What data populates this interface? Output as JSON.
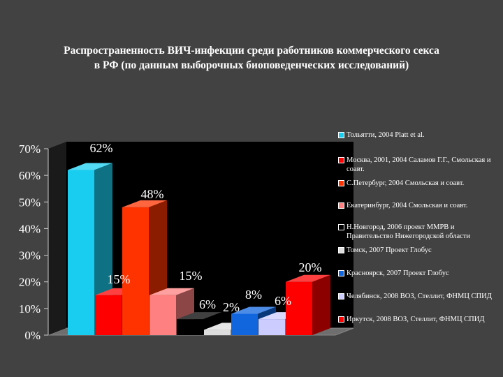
{
  "chart_data": {
    "type": "bar",
    "title_lines": [
      "Распространенность ВИЧ-инфекции среди работников коммерческого секса",
      "в РФ (по данным выборочных биоповеденческих исследований)"
    ],
    "ylim": [
      0,
      70
    ],
    "yticks": [
      "0%",
      "10%",
      "20%",
      "30%",
      "40%",
      "50%",
      "60%",
      "70%"
    ],
    "series": [
      {
        "name": "Тольятти, 2004 Platt et al.",
        "value": 62,
        "label": "62%",
        "color": "#19cdf0"
      },
      {
        "name": "Москва, 2001, 2004 Саламов Г.Г., Смольская и соавт.",
        "value": 15,
        "label": "15%",
        "color": "#ff0000"
      },
      {
        "name": "С.Петербург, 2004 Смольская и соавт.",
        "value": 48,
        "label": "48%",
        "color": "#ff3300"
      },
      {
        "name": "Екатеринбург, 2004 Смольская и соавт.",
        "value": 15,
        "label": "15%",
        "color": "#ff8080"
      },
      {
        "name": "Н.Новгород, 2006 проект ММРВ и Правительство Нижегородской области",
        "value": 6,
        "label": "6%",
        "color": "#000000"
      },
      {
        "name": "Томск, 2007 Проект Глобус",
        "value": 2,
        "label": "2%",
        "color": "#dddddd"
      },
      {
        "name": "Красноярск, 2007 Проект Глобус",
        "value": 8,
        "label": "8%",
        "color": "#1166dd"
      },
      {
        "name": "Челябинск, 2008 ВОЗ, Стеллит, ФНМЦ СПИД",
        "value": 6,
        "label": "6%",
        "color": "#ccccff"
      },
      {
        "name": "Иркутск, 2008 ВОЗ, Стеллит, ФНМЦ СПИД",
        "value": 20,
        "label": "20%",
        "color": "#ff0000"
      }
    ]
  }
}
